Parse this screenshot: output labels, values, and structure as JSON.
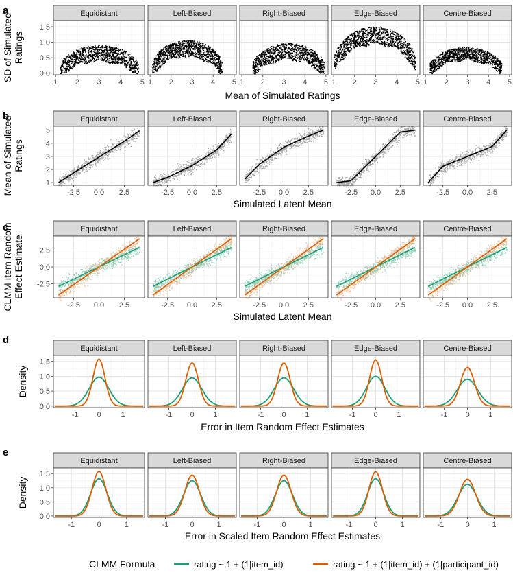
{
  "legend": {
    "title": "CLMM Formula",
    "items": [
      {
        "label": "rating ~ 1 + (1|item_id)",
        "color": "#1b9e77"
      },
      {
        "label": "rating ~ 1 + (1|item_id) + (1|participant_id)",
        "color": "#d95f02"
      }
    ]
  },
  "chart_data": [
    {
      "panel": "a",
      "type": "scatter",
      "facets": [
        "Equidistant",
        "Left-Biased",
        "Right-Biased",
        "Edge-Biased",
        "Centre-Biased"
      ],
      "xlabel": "Mean of Simulated Ratings",
      "ylabel": "SD of Simulated Ratings",
      "xlim": [
        0.9,
        5.1
      ],
      "ylim": [
        -0.05,
        1.7
      ],
      "xticks": [
        1,
        2,
        3,
        4,
        5
      ],
      "yticks": [
        0.0,
        0.5,
        1.0,
        1.5
      ],
      "ytick_labels": [
        "0.0",
        "0.5",
        "1.0",
        "1.5"
      ],
      "point_cloud": {
        "Equidistant": {
          "xrange": [
            1.2,
            4.8
          ],
          "sd_peak": 0.92,
          "sd_spread": 0.2
        },
        "Left-Biased": {
          "xrange": [
            1.1,
            4.4
          ],
          "sd_peak": 1.08,
          "sd_spread": 0.22
        },
        "Right-Biased": {
          "xrange": [
            1.5,
            4.9
          ],
          "sd_peak": 0.98,
          "sd_spread": 0.22
        },
        "Edge-Biased": {
          "xrange": [
            1.0,
            4.9
          ],
          "sd_peak": 1.52,
          "sd_spread": 0.25
        },
        "Centre-Biased": {
          "xrange": [
            1.2,
            4.6
          ],
          "sd_peak": 0.85,
          "sd_spread": 0.1
        }
      }
    },
    {
      "panel": "b",
      "type": "scatter",
      "facets": [
        "Equidistant",
        "Left-Biased",
        "Right-Biased",
        "Edge-Biased",
        "Centre-Biased"
      ],
      "xlabel": "Simulated Latent Mean",
      "ylabel": "Mean of Simulated Ratings",
      "xlim": [
        -4.5,
        4.5
      ],
      "ylim": [
        0.8,
        5.3
      ],
      "xticks": [
        -2.5,
        0.0,
        2.5
      ],
      "xtick_labels": [
        "-2.5",
        "0.0",
        "2.5"
      ],
      "yticks": [
        1,
        2,
        3,
        4,
        5
      ],
      "fit_lines": {
        "Equidistant": [
          [
            -4,
            1.0
          ],
          [
            -2.5,
            1.75
          ],
          [
            0,
            2.95
          ],
          [
            2.5,
            4.15
          ],
          [
            4,
            4.95
          ]
        ],
        "Left-Biased": [
          [
            -4,
            1.0
          ],
          [
            -2.5,
            1.4
          ],
          [
            0,
            2.3
          ],
          [
            2.5,
            3.5
          ],
          [
            4,
            4.7
          ]
        ],
        "Right-Biased": [
          [
            -4,
            1.25
          ],
          [
            -2.5,
            2.4
          ],
          [
            0,
            3.7
          ],
          [
            2.5,
            4.55
          ],
          [
            4,
            5.0
          ]
        ],
        "Edge-Biased": [
          [
            -4,
            1.0
          ],
          [
            -2.5,
            1.15
          ],
          [
            0,
            3.0
          ],
          [
            2.5,
            4.85
          ],
          [
            4,
            5.0
          ]
        ],
        "Centre-Biased": [
          [
            -4,
            1.0
          ],
          [
            -2.5,
            2.25
          ],
          [
            0,
            3.0
          ],
          [
            2.5,
            3.75
          ],
          [
            4,
            5.0
          ]
        ]
      }
    },
    {
      "panel": "c",
      "type": "scatter",
      "facets": [
        "Equidistant",
        "Left-Biased",
        "Right-Biased",
        "Edge-Biased",
        "Centre-Biased"
      ],
      "xlabel": "Simulated Latent Mean",
      "ylabel": "CLMM Item Random Effect Estimate",
      "xlim": [
        -4.5,
        4.5
      ],
      "ylim": [
        -4.6,
        4.6
      ],
      "xticks": [
        -2.5,
        0.0,
        2.5
      ],
      "xtick_labels": [
        "-2.5",
        "0.0",
        "2.5"
      ],
      "yticks": [
        -2.5,
        0.0,
        2.5
      ],
      "ytick_labels": [
        "-2.5",
        "0.0",
        "2.5"
      ],
      "series": [
        {
          "name": "rating ~ 1 + (1|item_id)",
          "line": [
            [
              -4,
              -2.9
            ],
            [
              4,
              2.9
            ]
          ]
        },
        {
          "name": "rating ~ 1 + (1|item_id) + (1|participant_id)",
          "line": [
            [
              -4,
              -4.2
            ],
            [
              4,
              4.2
            ]
          ]
        }
      ]
    },
    {
      "panel": "d",
      "type": "line",
      "facets": [
        "Equidistant",
        "Left-Biased",
        "Right-Biased",
        "Edge-Biased",
        "Centre-Biased"
      ],
      "xlabel": "Error in Item Random Effect Estimates",
      "ylabel": "Density",
      "xlim": [
        -1.9,
        1.9
      ],
      "ylim": [
        -0.05,
        1.7
      ],
      "xticks": [
        -1,
        0,
        1
      ],
      "yticks": [
        0.0,
        0.5,
        1.0,
        1.5
      ],
      "ytick_labels": [
        "0.0",
        "0.5",
        "1.0",
        "1.5"
      ],
      "series": [
        {
          "name": "rating ~ 1 + (1|item_id)",
          "peaks": [
            0.97,
            0.95,
            0.95,
            1.0,
            0.9
          ],
          "sd": [
            0.41,
            0.42,
            0.42,
            0.4,
            0.44
          ]
        },
        {
          "name": "rating ~ 1 + (1|item_id) + (1|participant_id)",
          "peaks": [
            1.58,
            1.45,
            1.45,
            1.55,
            1.3
          ],
          "sd": [
            0.25,
            0.27,
            0.27,
            0.26,
            0.3
          ]
        }
      ]
    },
    {
      "panel": "e",
      "type": "line",
      "facets": [
        "Equidistant",
        "Left-Biased",
        "Right-Biased",
        "Edge-Biased",
        "Centre-Biased"
      ],
      "xlabel": "Error in Scaled Item Random Effect Estimates",
      "ylabel": "Density",
      "xlim": [
        -1.65,
        1.65
      ],
      "ylim": [
        -0.05,
        1.7
      ],
      "xticks": [
        -1,
        0,
        1
      ],
      "yticks": [
        0.0,
        0.5,
        1.0,
        1.5
      ],
      "ytick_labels": [
        "0.0",
        "0.5",
        "1.0",
        "1.5"
      ],
      "series": [
        {
          "name": "rating ~ 1 + (1|item_id)",
          "peaks": [
            1.32,
            1.25,
            1.25,
            1.32,
            1.12
          ],
          "sd": [
            0.3,
            0.32,
            0.32,
            0.3,
            0.35
          ]
        },
        {
          "name": "rating ~ 1 + (1|item_id) + (1|participant_id)",
          "peaks": [
            1.58,
            1.45,
            1.45,
            1.57,
            1.3
          ],
          "sd": [
            0.25,
            0.27,
            0.27,
            0.25,
            0.3
          ]
        }
      ]
    }
  ]
}
